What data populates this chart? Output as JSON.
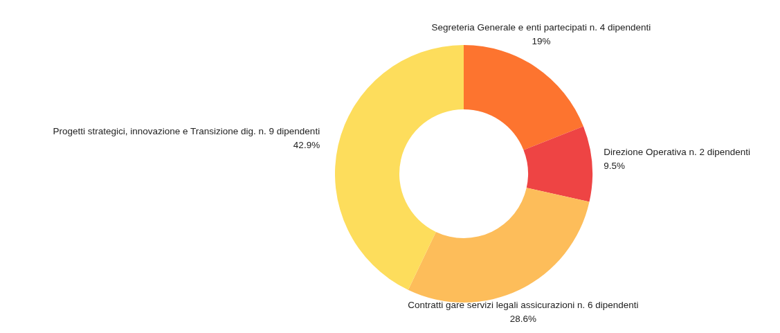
{
  "chart_data": {
    "type": "donut",
    "categories": [
      "Segreteria Generale e enti partecipati n. 4 dipendenti",
      "Direzione Operativa n. 2 dipendenti",
      "Contratti gare servizi legali assicurazioni n. 6 dipendenti",
      "Progetti strategici, innovazione e Transizione dig. n. 9 dipendenti"
    ],
    "values": [
      19,
      9.5,
      28.6,
      42.9
    ],
    "value_labels": [
      "19%",
      "9.5%",
      "28.6%",
      "42.9%"
    ],
    "colors": [
      "#fd742f",
      "#ee4444",
      "#fdbd5a",
      "#fddd5c"
    ],
    "legend": false
  }
}
